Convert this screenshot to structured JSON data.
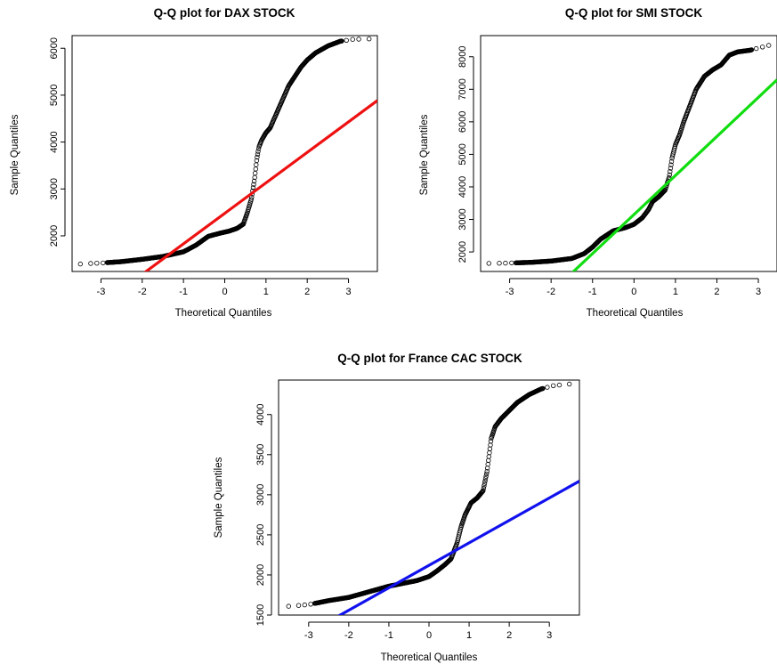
{
  "chart_data": [
    {
      "type": "scatter",
      "title": "Q-Q plot for DAX STOCK",
      "xlabel": "Theoretical Quantiles",
      "ylabel": "Sample Quantiles",
      "xlim": [
        -3.7,
        3.7
      ],
      "ylim": [
        1240,
        6270
      ],
      "x_ticks": [
        -3,
        -2,
        -1,
        0,
        1,
        2,
        3
      ],
      "y_ticks": [
        2000,
        3000,
        4000,
        5000,
        6000
      ],
      "line_color": "#ee1111",
      "point_color": "#000000",
      "qq_line": {
        "intercept": 2480,
        "slope": 650
      },
      "quantile_curve": [
        [
          -3.5,
          1400
        ],
        [
          -3.0,
          1420
        ],
        [
          -2.5,
          1450
        ],
        [
          -2.0,
          1500
        ],
        [
          -1.5,
          1560
        ],
        [
          -1.0,
          1660
        ],
        [
          -0.7,
          1800
        ],
        [
          -0.4,
          1990
        ],
        [
          -0.1,
          2060
        ],
        [
          0.1,
          2100
        ],
        [
          0.3,
          2160
        ],
        [
          0.45,
          2250
        ],
        [
          0.55,
          2500
        ],
        [
          0.65,
          2800
        ],
        [
          0.72,
          3200
        ],
        [
          0.78,
          3650
        ],
        [
          0.83,
          3900
        ],
        [
          0.9,
          4050
        ],
        [
          1.0,
          4200
        ],
        [
          1.1,
          4300
        ],
        [
          1.25,
          4600
        ],
        [
          1.4,
          4900
        ],
        [
          1.55,
          5200
        ],
        [
          1.7,
          5400
        ],
        [
          1.85,
          5600
        ],
        [
          2.0,
          5750
        ],
        [
          2.2,
          5900
        ],
        [
          2.5,
          6050
        ],
        [
          2.8,
          6150
        ],
        [
          3.1,
          6190
        ],
        [
          3.5,
          6200
        ]
      ]
    },
    {
      "type": "scatter",
      "title": "Q-Q plot for SMI STOCK",
      "xlabel": "Theoretical Quantiles",
      "ylabel": "Sample Quantiles",
      "xlim": [
        -3.7,
        3.45
      ],
      "ylim": [
        1400,
        8650
      ],
      "x_ticks": [
        -3,
        -2,
        -1,
        0,
        1,
        2,
        3
      ],
      "y_ticks": [
        2000,
        3000,
        4000,
        5000,
        6000,
        7000,
        8000
      ],
      "line_color": "#11dd11",
      "point_color": "#000000",
      "qq_line": {
        "intercept": 3150,
        "slope": 1200
      },
      "quantile_curve": [
        [
          -3.5,
          1650
        ],
        [
          -3.0,
          1660
        ],
        [
          -2.5,
          1680
        ],
        [
          -2.0,
          1720
        ],
        [
          -1.5,
          1800
        ],
        [
          -1.2,
          1950
        ],
        [
          -1.0,
          2150
        ],
        [
          -0.8,
          2400
        ],
        [
          -0.5,
          2650
        ],
        [
          -0.2,
          2750
        ],
        [
          0.0,
          2850
        ],
        [
          0.2,
          3050
        ],
        [
          0.35,
          3300
        ],
        [
          0.45,
          3550
        ],
        [
          0.6,
          3700
        ],
        [
          0.75,
          3900
        ],
        [
          0.85,
          4300
        ],
        [
          0.92,
          4900
        ],
        [
          1.0,
          5300
        ],
        [
          1.1,
          5600
        ],
        [
          1.2,
          6000
        ],
        [
          1.35,
          6500
        ],
        [
          1.5,
          7000
        ],
        [
          1.7,
          7400
        ],
        [
          1.9,
          7600
        ],
        [
          2.1,
          7750
        ],
        [
          2.3,
          8050
        ],
        [
          2.5,
          8150
        ],
        [
          2.8,
          8200
        ],
        [
          3.1,
          8300
        ],
        [
          3.4,
          8400
        ]
      ]
    },
    {
      "type": "scatter",
      "title": "Q-Q plot for France CAC STOCK",
      "xlabel": "Theoretical Quantiles",
      "ylabel": "Sample Quantiles",
      "xlim": [
        -3.75,
        3.75
      ],
      "ylim": [
        1500,
        4430
      ],
      "x_ticks": [
        -3,
        -2,
        -1,
        0,
        1,
        2,
        3
      ],
      "y_ticks": [
        1500,
        2000,
        2500,
        3000,
        3500,
        4000
      ],
      "line_color": "#1111ee",
      "point_color": "#000000",
      "qq_line": {
        "intercept": 2120,
        "slope": 280
      },
      "quantile_curve": [
        [
          -3.5,
          1610
        ],
        [
          -3.0,
          1630
        ],
        [
          -2.5,
          1680
        ],
        [
          -2.0,
          1720
        ],
        [
          -1.5,
          1790
        ],
        [
          -1.0,
          1860
        ],
        [
          -0.6,
          1900
        ],
        [
          -0.3,
          1930
        ],
        [
          0.0,
          1980
        ],
        [
          0.2,
          2050
        ],
        [
          0.4,
          2130
        ],
        [
          0.55,
          2200
        ],
        [
          0.7,
          2400
        ],
        [
          0.8,
          2600
        ],
        [
          0.9,
          2750
        ],
        [
          1.05,
          2900
        ],
        [
          1.2,
          2960
        ],
        [
          1.35,
          3050
        ],
        [
          1.45,
          3300
        ],
        [
          1.55,
          3700
        ],
        [
          1.65,
          3850
        ],
        [
          1.8,
          3950
        ],
        [
          2.0,
          4050
        ],
        [
          2.2,
          4150
        ],
        [
          2.5,
          4250
        ],
        [
          2.8,
          4320
        ],
        [
          3.1,
          4360
        ],
        [
          3.5,
          4380
        ]
      ]
    }
  ]
}
